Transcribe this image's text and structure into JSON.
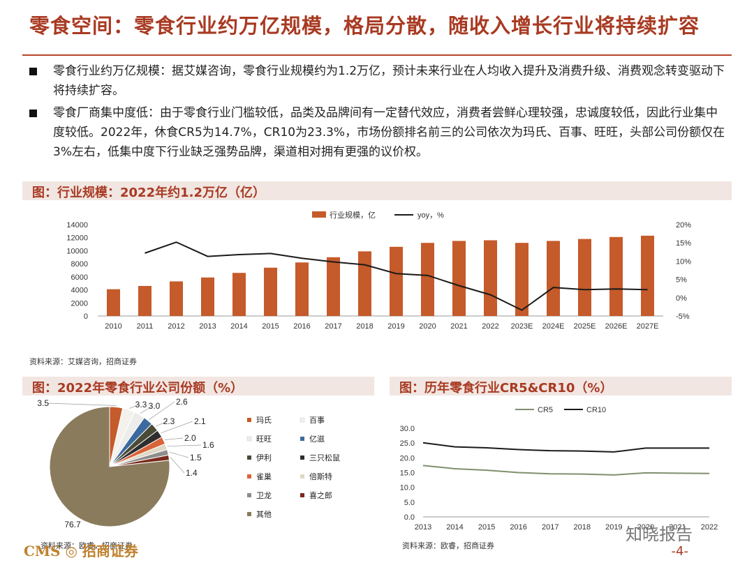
{
  "page": {
    "title": "零食空间：零食行业约万亿规模，格局分散，随收入增长行业将持续扩容",
    "bullets": [
      "零食行业约万亿规模：据艾媒咨询，零食行业规模约为1.2万亿，预计未来行业在人均收入提升及消费升级、消费观念转变驱动下将持续扩容。",
      "零食厂商集中度低：由于零食行业门槛较低，品类及品牌间有一定替代效应，消费者尝鲜心理较强，忠诚度较低，因此行业集中度较低。2022年，休食CR5为14.7%，CR10为23.3%，市场份额排名前三的公司依次为玛氏、百事、旺旺，头部公司份额仅在3%左右，低集中度下行业缺乏强势品牌，渠道相对拥有更强的议价权。"
    ],
    "section1_title": "图：行业规模：2022年约1.2万亿（亿）",
    "section2_title": "图：2022年零食行业公司份额（%）",
    "section3_title": "图：历年零食行业CR5&CR10（%）",
    "source1": "资料来源：艾媒咨询，招商证券",
    "source2": "资料来源：欧睿，招商证券",
    "source3": "资料来源：欧睿，招商证券",
    "footer_logo": "CMS ◎ 招商证券",
    "page_number": "-4-",
    "watermark": "知晓报告"
  },
  "colors": {
    "accent": "#a83a22",
    "bar": "#c55a2a",
    "line_dark": "#1a1a1a",
    "line_cr5": "#7f8f6e"
  },
  "chart_data": [
    {
      "type": "bar",
      "title": "行业规模：2022年约1.2万亿（亿）",
      "categories": [
        "2010",
        "2011",
        "2012",
        "2013",
        "2014",
        "2015",
        "2016",
        "2017",
        "2018",
        "2019",
        "2020",
        "2021",
        "2022",
        "2023E",
        "2024E",
        "2025E",
        "2026E",
        "2027E"
      ],
      "series": [
        {
          "name": "行业规模，亿",
          "type": "bar",
          "axis": "left",
          "values": [
            4100,
            4600,
            5300,
            5900,
            6600,
            7400,
            8200,
            9000,
            9900,
            10600,
            11200,
            11500,
            11600,
            11200,
            11500,
            11800,
            12100,
            12300
          ]
        },
        {
          "name": "yoy，%",
          "type": "line",
          "axis": "right",
          "values": [
            null,
            12.2,
            15.2,
            11.3,
            11.8,
            12.1,
            10.8,
            9.8,
            9.0,
            6.6,
            6.1,
            3.3,
            0.8,
            -3.4,
            2.8,
            2.2,
            2.4,
            2.2
          ]
        }
      ],
      "ylim": [
        0,
        14000
      ],
      "yticks": [
        "0",
        "2000",
        "4000",
        "6000",
        "8000",
        "10000",
        "12000",
        "14000"
      ],
      "y2lim": [
        -5,
        20
      ],
      "y2ticks": [
        "-5%",
        "0%",
        "5%",
        "10%",
        "15%",
        "20%"
      ]
    },
    {
      "type": "pie",
      "title": "2022年零食行业公司份额（%）",
      "labels": [
        "玛氏",
        "百事",
        "旺旺",
        "亿滋",
        "伊利",
        "三只松鼠",
        "雀巢",
        "倍斯特",
        "卫龙",
        "喜之郎",
        "其他"
      ],
      "values": [
        3.5,
        3.3,
        3.0,
        2.6,
        2.3,
        2.1,
        2.0,
        1.6,
        1.5,
        1.4,
        76.7
      ],
      "value_labels": [
        "3.5",
        "3.3",
        "3.0",
        "2.6",
        "2.3",
        "2.1",
        "2.0",
        "1.6",
        "1.5",
        "1.4",
        "76.7"
      ],
      "colors": [
        "#c55a2a",
        "#f4f1ec",
        "#ececec",
        "#3c6a9e",
        "#4a4a36",
        "#2e2e2e",
        "#d9643a",
        "#ddd9c6",
        "#8d8d8d",
        "#7a2a1a",
        "#8a7b5c"
      ]
    },
    {
      "type": "line",
      "title": "历年零食行业CR5&CR10（%）",
      "categories": [
        "2013",
        "2014",
        "2015",
        "2016",
        "2017",
        "2018",
        "2019",
        "2020",
        "2021",
        "2022"
      ],
      "series": [
        {
          "name": "CR5",
          "values": [
            17.4,
            16.3,
            15.8,
            15.0,
            14.6,
            14.5,
            14.2,
            14.9,
            14.8,
            14.7
          ]
        },
        {
          "name": "CR10",
          "values": [
            25.1,
            23.7,
            23.4,
            22.8,
            22.4,
            22.3,
            22.0,
            23.3,
            23.3,
            23.3
          ]
        }
      ],
      "ylim": [
        0,
        30
      ],
      "yticks": [
        "0.0",
        "5.0",
        "10.0",
        "15.0",
        "20.0",
        "25.0",
        "30.0"
      ]
    }
  ]
}
